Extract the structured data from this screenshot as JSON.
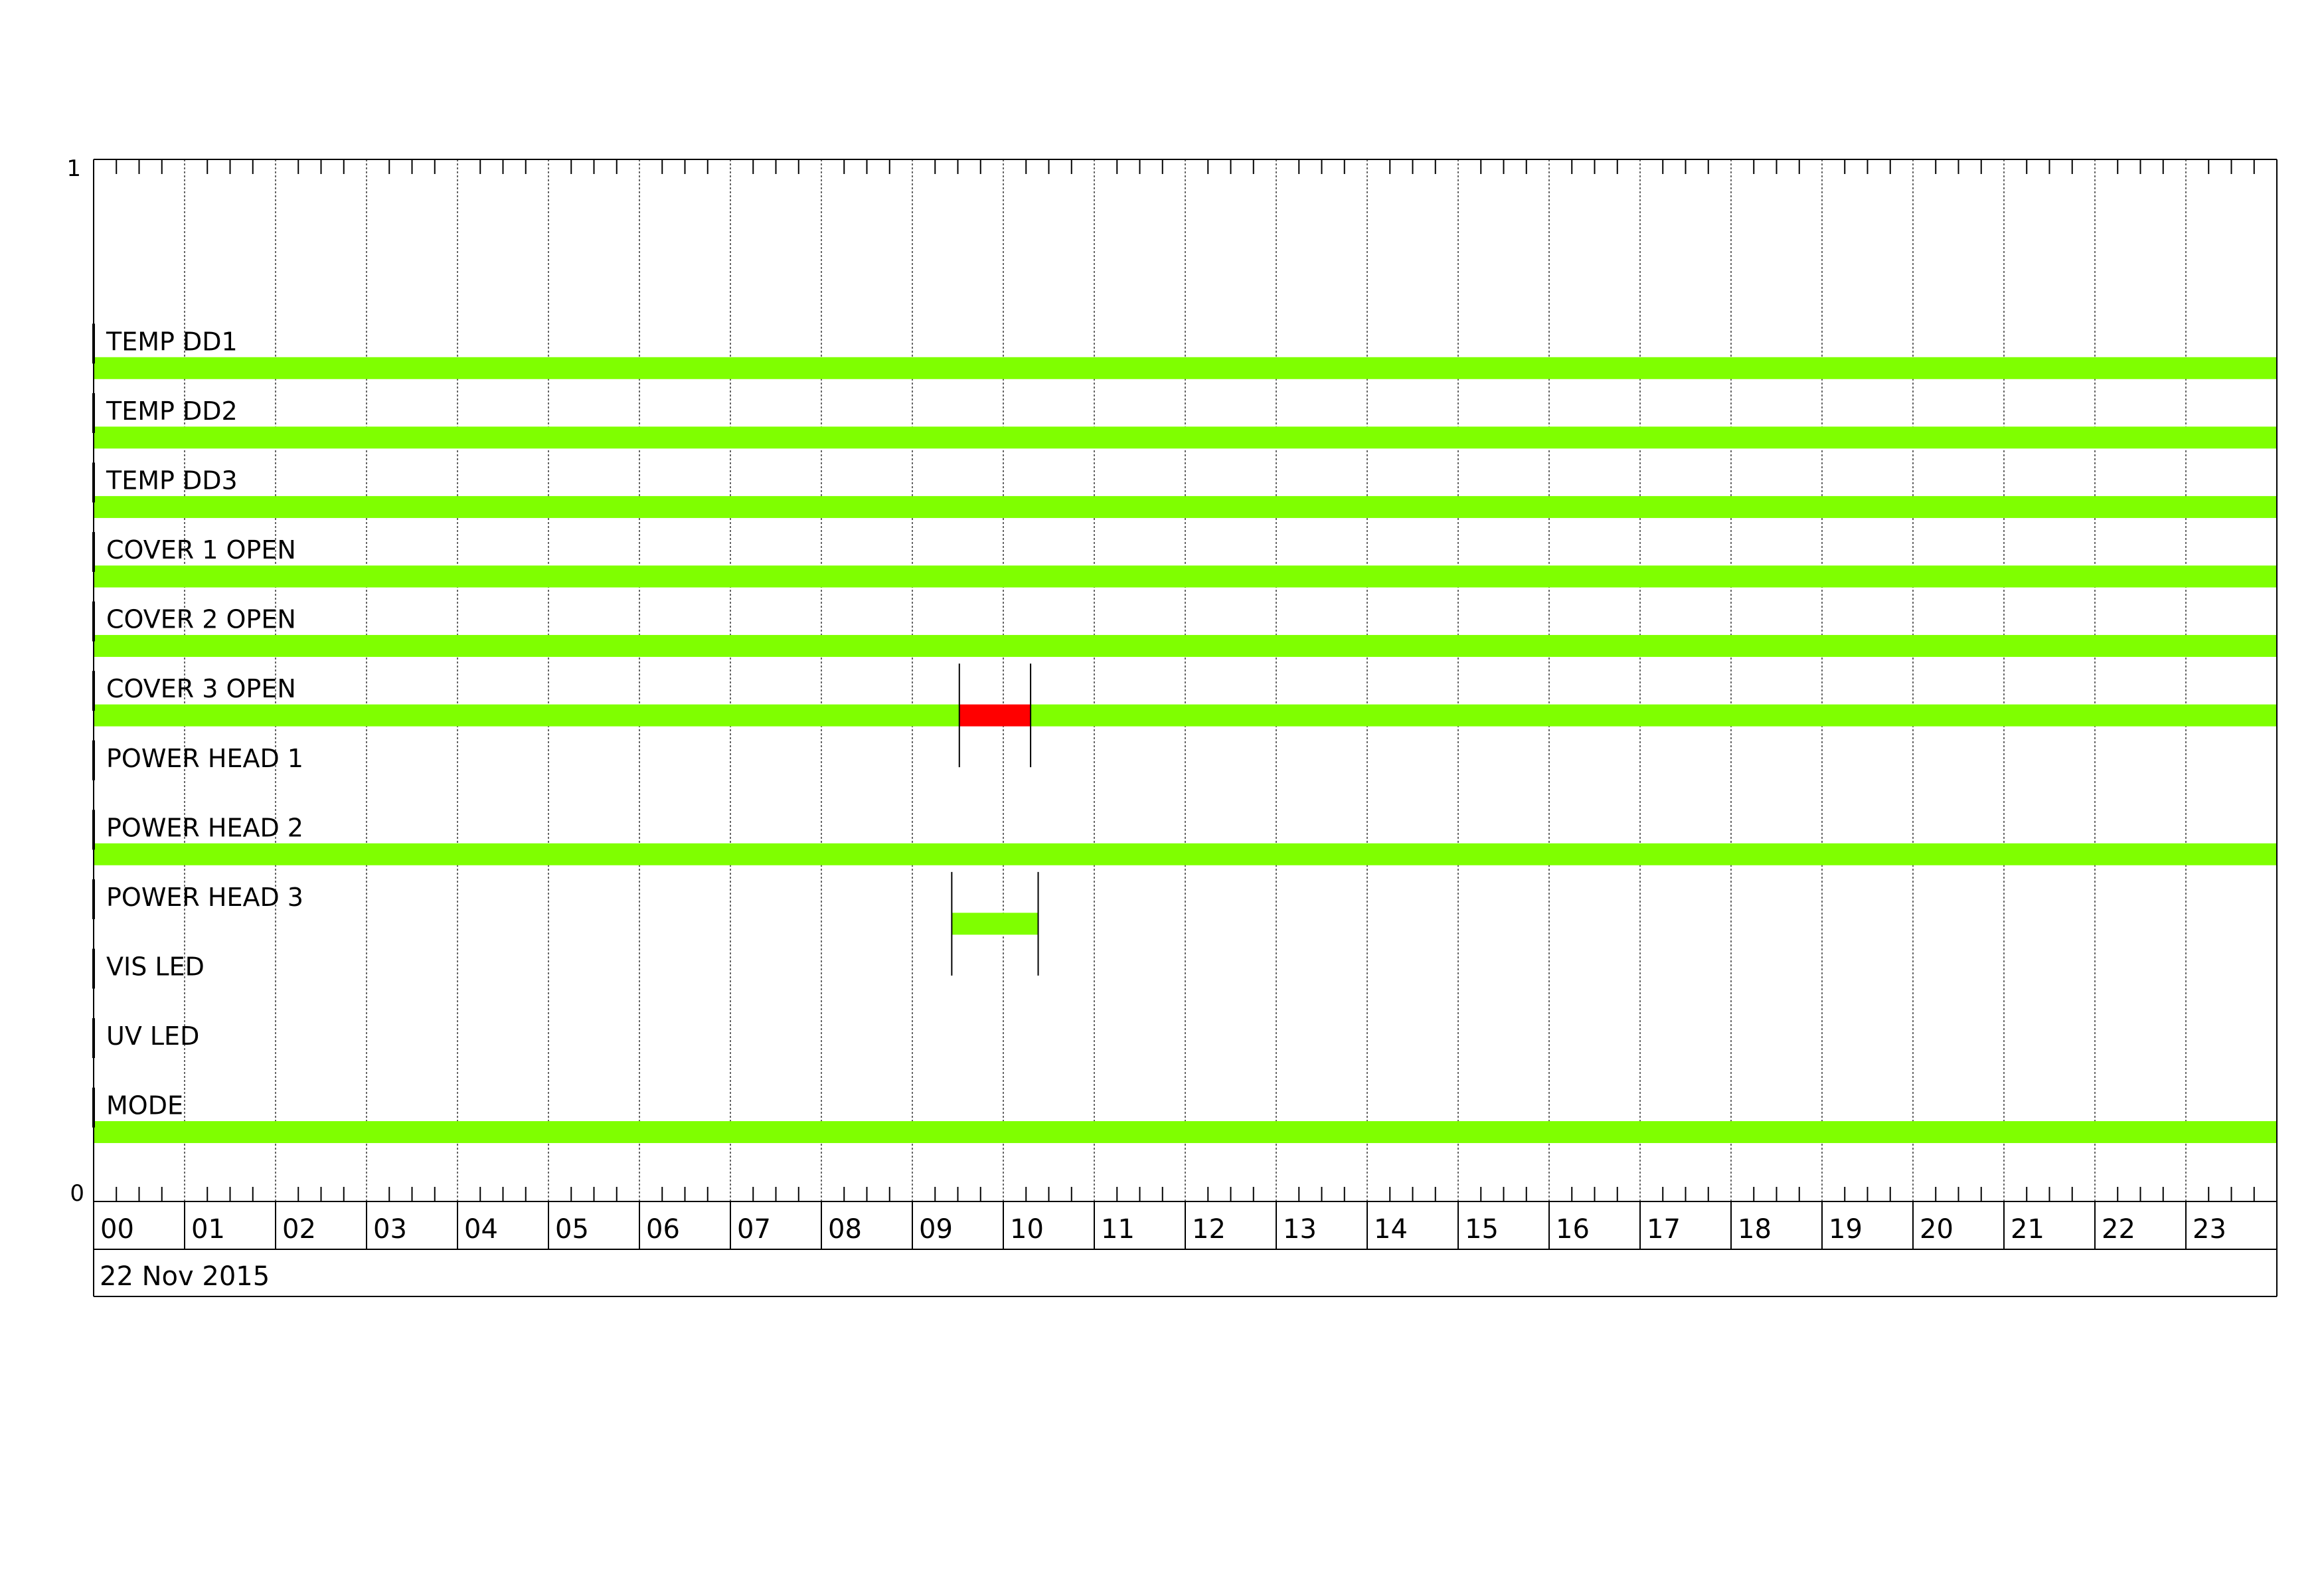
{
  "chart_data": {
    "type": "timeline",
    "title": "",
    "ylim": [
      0,
      1
    ],
    "y_tick_labels": [
      "1",
      "0"
    ],
    "xlim_hours": [
      0,
      24
    ],
    "x_tick_labels": [
      "00",
      "01",
      "02",
      "03",
      "04",
      "05",
      "06",
      "07",
      "08",
      "09",
      "10",
      "11",
      "12",
      "13",
      "14",
      "15",
      "16",
      "17",
      "18",
      "19",
      "20",
      "21",
      "22",
      "23"
    ],
    "date_label": "22 Nov 2015",
    "grid": true,
    "colors": {
      "ok": "#7fff00",
      "alarm": "#ff0000"
    },
    "rows": [
      {
        "label": "TEMP DD1",
        "segments": [
          {
            "start": "00:00",
            "end": "24:00",
            "state": "ok"
          }
        ]
      },
      {
        "label": "TEMP DD2",
        "segments": [
          {
            "start": "00:00",
            "end": "24:00",
            "state": "ok"
          }
        ]
      },
      {
        "label": "TEMP DD3",
        "segments": [
          {
            "start": "00:00",
            "end": "24:00",
            "state": "ok"
          }
        ]
      },
      {
        "label": "COVER 1 OPEN",
        "segments": [
          {
            "start": "00:00",
            "end": "24:00",
            "state": "ok"
          }
        ]
      },
      {
        "label": "COVER 2 OPEN",
        "segments": [
          {
            "start": "00:00",
            "end": "24:00",
            "state": "ok"
          }
        ]
      },
      {
        "label": "COVER 3 OPEN",
        "segments": [
          {
            "start": "00:00",
            "end": "09:31",
            "state": "ok"
          },
          {
            "start": "09:31",
            "end": "10:18",
            "state": "alarm"
          },
          {
            "start": "10:18",
            "end": "24:00",
            "state": "ok"
          }
        ],
        "markers": [
          "09:31",
          "10:18"
        ]
      },
      {
        "label": "POWER HEAD 1",
        "segments": []
      },
      {
        "label": "POWER HEAD 2",
        "segments": [
          {
            "start": "00:00",
            "end": "24:00",
            "state": "ok"
          }
        ]
      },
      {
        "label": "POWER HEAD 3",
        "segments": [
          {
            "start": "09:26",
            "end": "10:23",
            "state": "ok"
          }
        ],
        "markers": [
          "09:26",
          "10:23"
        ]
      },
      {
        "label": "VIS LED",
        "segments": []
      },
      {
        "label": "UV LED",
        "segments": []
      },
      {
        "label": "MODE",
        "segments": [
          {
            "start": "00:00",
            "end": "24:00",
            "state": "ok"
          }
        ]
      }
    ]
  }
}
